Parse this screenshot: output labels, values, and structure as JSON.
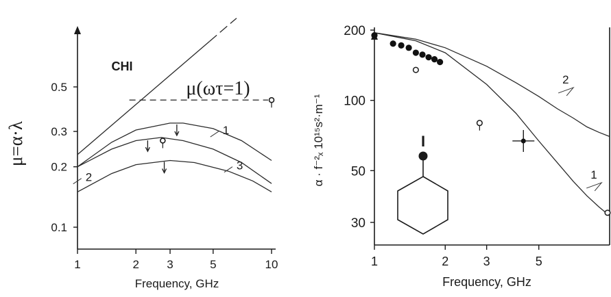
{
  "chart_data": [
    {
      "type": "line",
      "panel": "left",
      "ylabel": "μ=α·λ",
      "xlabel": "Frequency, GHz",
      "x_scale": "log",
      "y_scale": "log",
      "xlim": [
        1,
        10
      ],
      "ylim": [
        0.08,
        1.1
      ],
      "x_ticks": [
        1,
        2,
        3,
        5,
        10
      ],
      "y_ticks": [
        0.1,
        0.2,
        0.3,
        0.5
      ],
      "annotation_chi": "CHI",
      "annotation_mu": "μ(ωτ=1)",
      "mu_level": 0.43,
      "linear_line": {
        "x": [
          1,
          6.6
        ],
        "y": [
          0.23,
          1.1
        ]
      },
      "series": [
        {
          "label": "1",
          "x": [
            1,
            1.5,
            2,
            3,
            3.5,
            5,
            7,
            10
          ],
          "y": [
            0.2,
            0.265,
            0.305,
            0.33,
            0.33,
            0.31,
            0.27,
            0.215
          ],
          "label_x": 5.6,
          "label_y": 0.3
        },
        {
          "label": "2",
          "x": [
            1,
            1.5,
            2,
            2.7,
            3.5,
            5,
            7,
            10
          ],
          "y": [
            0.2,
            0.245,
            0.27,
            0.28,
            0.27,
            0.245,
            0.21,
            0.165
          ],
          "label_x": 1.1,
          "label_y": 0.175
        },
        {
          "label": "3",
          "x": [
            1,
            1.5,
            2,
            3,
            4,
            6,
            8,
            10
          ],
          "y": [
            0.15,
            0.185,
            0.205,
            0.215,
            0.21,
            0.19,
            0.17,
            0.15
          ],
          "label_x": 6.6,
          "label_y": 0.2
        }
      ],
      "arrows": [
        {
          "x": 3.25,
          "y": 0.33
        },
        {
          "x": 2.3,
          "y": 0.275
        },
        {
          "x": 2.8,
          "y": 0.215
        }
      ],
      "markers": [
        {
          "x": 2.75,
          "y": 0.27
        },
        {
          "x": 10,
          "y": 0.43
        }
      ]
    },
    {
      "type": "line",
      "panel": "right",
      "ylabel": "α · f⁻²ₓ 10¹⁵s²·m⁻¹",
      "xlabel": "Frequency, GHz",
      "x_scale": "log",
      "y_scale": "log",
      "xlim": [
        1,
        10
      ],
      "ylim": [
        26,
        210
      ],
      "x_ticks": [
        1,
        2,
        3,
        5
      ],
      "y_ticks": [
        30,
        50,
        100,
        200
      ],
      "molecule_label": "I",
      "series": [
        {
          "label": "1",
          "x": [
            1,
            1.5,
            2,
            3,
            4,
            5,
            6,
            7,
            8,
            9,
            10
          ],
          "y": [
            195,
            180,
            160,
            117,
            88,
            67,
            54,
            45,
            39,
            35,
            32
          ]
        },
        {
          "label": "2",
          "x": [
            1,
            1.5,
            2,
            3,
            4,
            5,
            6,
            7,
            8,
            9,
            10
          ],
          "y": [
            195,
            183,
            168,
            140,
            119,
            104,
            92,
            84,
            77,
            73,
            70
          ]
        }
      ],
      "curve_labels": [
        {
          "label": "2",
          "x": 6.3,
          "y": 115
        },
        {
          "label": "1",
          "x": 8.3,
          "y": 45
        }
      ],
      "filled_points": {
        "x": [
          1.0,
          1.2,
          1.3,
          1.4,
          1.5,
          1.6,
          1.7,
          1.8,
          1.9
        ],
        "y": [
          190,
          175,
          172,
          168,
          160,
          157,
          153,
          150,
          146
        ]
      },
      "open_points": [
        {
          "x": 1.5,
          "y": 135
        },
        {
          "x": 2.8,
          "y": 80
        },
        {
          "x": 9.8,
          "y": 33
        }
      ],
      "error_point": {
        "x": 4.3,
        "y": 67
      }
    }
  ]
}
